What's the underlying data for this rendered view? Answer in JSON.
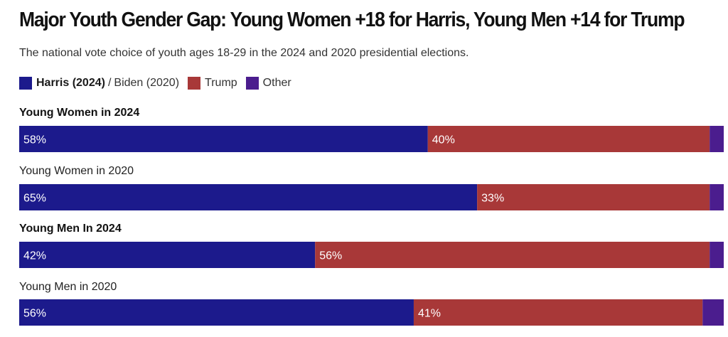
{
  "title": "Major Youth Gender Gap: Young Women +18 for Harris, Young Men +14 for Trump",
  "subtitle": "The national vote choice of youth ages 18-29 in the 2024 and 2020 presidential elections.",
  "legend": {
    "harris": "Harris (2024)",
    "separator": "/",
    "biden": "Biden (2020)",
    "trump": "Trump",
    "other": "Other"
  },
  "colors": {
    "dem": "#1c1a8c",
    "trump": "#a83838",
    "other": "#4b1d8e"
  },
  "chart_data": {
    "type": "bar",
    "orientation": "horizontal",
    "stacked": true,
    "percent": true,
    "categories": [
      "Young Women in 2024",
      "Young Women in 2020",
      "Young Men In 2024",
      "Young Men in 2020"
    ],
    "bold_categories": [
      true,
      false,
      true,
      false
    ],
    "series": [
      {
        "name": "Harris (2024) / Biden (2020)",
        "values": [
          58,
          65,
          42,
          56
        ],
        "labels": [
          "58%",
          "65%",
          "42%",
          "56%"
        ]
      },
      {
        "name": "Trump",
        "values": [
          40,
          33,
          56,
          41
        ],
        "labels": [
          "40%",
          "33%",
          "56%",
          "41%"
        ]
      },
      {
        "name": "Other",
        "values": [
          2,
          2,
          2,
          3
        ],
        "labels": [
          "",
          "",
          "",
          ""
        ]
      }
    ],
    "title": "Major Youth Gender Gap: Young Women +18 for Harris, Young Men +14 for Trump",
    "xlabel": "",
    "ylabel": "",
    "xlim": [
      0,
      100
    ],
    "grid": false,
    "legend_position": "top-left"
  }
}
